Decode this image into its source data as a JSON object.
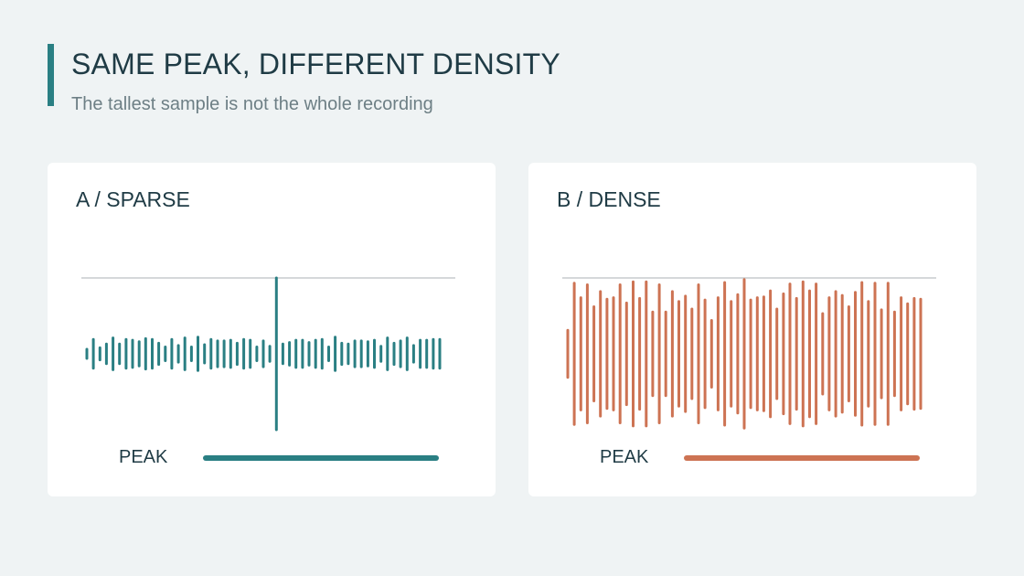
{
  "header": {
    "title": "SAME PEAK, DIFFERENT DENSITY",
    "subtitle": "The tallest sample is not the whole recording"
  },
  "panels": [
    {
      "label": "A / SPARSE",
      "peak_label": "PEAK",
      "color": "#2a7f83"
    },
    {
      "label": "B / DENSE",
      "peak_label": "PEAK",
      "color": "#cd7353"
    }
  ],
  "chart_data": [
    {
      "type": "bar",
      "title": "A / SPARSE",
      "description_marker": "waveform; peak reference line at amplitude 1.0",
      "ylim": [
        -1,
        1
      ],
      "peak": 1.0,
      "values": [
        0.06,
        0.19,
        0.08,
        0.13,
        0.21,
        0.13,
        0.19,
        0.18,
        0.16,
        0.2,
        0.19,
        0.14,
        0.09,
        0.19,
        0.11,
        0.21,
        0.09,
        0.22,
        0.12,
        0.19,
        0.17,
        0.17,
        0.18,
        0.14,
        0.19,
        0.18,
        0.09,
        0.17,
        0.1,
        1.0,
        0.13,
        0.15,
        0.18,
        0.18,
        0.15,
        0.18,
        0.19,
        0.09,
        0.22,
        0.14,
        0.13,
        0.17,
        0.17,
        0.16,
        0.18,
        0.1,
        0.21,
        0.14,
        0.17,
        0.21,
        0.11,
        0.18,
        0.18,
        0.19,
        0.19
      ]
    },
    {
      "type": "bar",
      "title": "B / DENSE",
      "description_marker": "waveform; peak reference line at amplitude 1.0",
      "ylim": [
        -1,
        1
      ],
      "peak": 1.0,
      "values": [
        0.31,
        0.93,
        0.74,
        0.91,
        0.62,
        0.82,
        0.72,
        0.74,
        0.91,
        0.67,
        0.95,
        0.73,
        0.95,
        0.55,
        0.91,
        0.55,
        0.82,
        0.69,
        0.76,
        0.59,
        0.91,
        0.71,
        0.44,
        0.74,
        0.94,
        0.69,
        0.78,
        0.98,
        0.71,
        0.74,
        0.75,
        0.83,
        0.59,
        0.79,
        0.92,
        0.73,
        0.95,
        0.83,
        0.92,
        0.53,
        0.74,
        0.82,
        0.77,
        0.62,
        0.81,
        0.94,
        0.69,
        0.93,
        0.58,
        0.93,
        0.55,
        0.74,
        0.66,
        0.73,
        0.72
      ]
    }
  ]
}
